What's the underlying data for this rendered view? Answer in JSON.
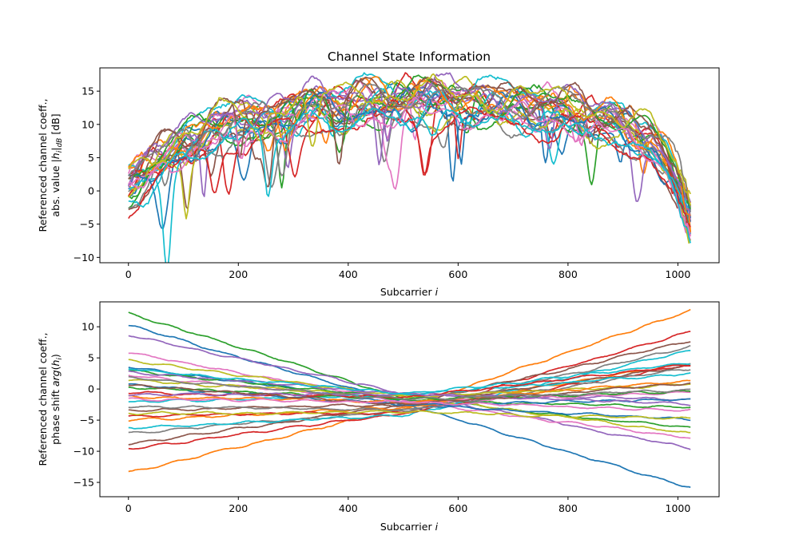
{
  "title": "Channel State Information",
  "chart_data": [
    {
      "type": "line",
      "title": "Channel State Information",
      "xlabel": "Subcarrier i",
      "ylabel_line1": "Referenced channel coeff.,",
      "ylabel_line2": "abs. value |h_i|_dB [dB]",
      "xlim": [
        -52,
        1075
      ],
      "ylim": [
        -10.8,
        18.5
      ],
      "xticks": [
        0,
        200,
        400,
        600,
        800,
        1000
      ],
      "yticks": [
        -10,
        -5,
        0,
        5,
        10,
        15
      ],
      "xtick_labels": [
        "0",
        "200",
        "400",
        "600",
        "800",
        "1000"
      ],
      "ytick_labels": [
        "−10",
        "−5",
        "0",
        "5",
        "10",
        "15"
      ],
      "grid": false,
      "legend": "none",
      "num_series": 30,
      "subcarriers": [
        0,
        1023
      ],
      "envelope": {
        "x": [
          0,
          50,
          100,
          150,
          200,
          300,
          400,
          500,
          600,
          700,
          800,
          880,
          950,
          1000,
          1023
        ],
        "y_mean": [
          0.5,
          3.5,
          6.5,
          9,
          10,
          11.5,
          12.5,
          13,
          13,
          12.5,
          11.5,
          10,
          7,
          2,
          -2
        ],
        "spread": 3.5
      }
    },
    {
      "type": "line",
      "xlabel": "Subcarrier i",
      "ylabel_line1": "Referenced channel coeff.,",
      "ylabel_line2": "phase shift arg(h_i)",
      "xlim": [
        -52,
        1075
      ],
      "ylim": [
        -17.3,
        14
      ],
      "xticks": [
        0,
        200,
        400,
        600,
        800,
        1000
      ],
      "yticks": [
        -15,
        -10,
        -5,
        0,
        5,
        10
      ],
      "xtick_labels": [
        "0",
        "200",
        "400",
        "600",
        "800",
        "1000"
      ],
      "ytick_labels": [
        "−15",
        "−10",
        "−5",
        "0",
        "5",
        "10"
      ],
      "grid": false,
      "legend": "none",
      "series": [
        {
          "start": 10.2,
          "end": -15.9
        },
        {
          "start": -13.4,
          "end": 12.6
        },
        {
          "start": 12.2,
          "end": -6.2
        },
        {
          "start": -9.6,
          "end": 9.3
        },
        {
          "start": 8.7,
          "end": -9.4
        },
        {
          "start": -8.8,
          "end": 7.7
        },
        {
          "start": 5.8,
          "end": -7.9
        },
        {
          "start": -7.1,
          "end": 6.8
        },
        {
          "start": 4.6,
          "end": -7.1
        },
        {
          "start": -6.3,
          "end": 6.2
        },
        {
          "start": 3.6,
          "end": -4.9
        },
        {
          "start": -5.0,
          "end": 4.2
        },
        {
          "start": 3.0,
          "end": -2.9
        },
        {
          "start": -4.4,
          "end": 4.0
        },
        {
          "start": 2.7,
          "end": -1.6
        },
        {
          "start": -3.4,
          "end": 3.8
        },
        {
          "start": 2.2,
          "end": -0.6
        },
        {
          "start": -2.8,
          "end": 3.3
        },
        {
          "start": 1.5,
          "end": 0.8
        },
        {
          "start": -2.1,
          "end": 2.5
        },
        {
          "start": 0.7,
          "end": -1.8
        },
        {
          "start": -1.2,
          "end": 1.3
        },
        {
          "start": 0.3,
          "end": -0.4
        },
        {
          "start": -0.6,
          "end": 3.9
        },
        {
          "start": -0.9,
          "end": -2.4
        },
        {
          "start": 0.6,
          "end": 1.0
        },
        {
          "start": -1.6,
          "end": -3.4
        },
        {
          "start": 1.9,
          "end": 0.0
        },
        {
          "start": -3.9,
          "end": -4.8
        },
        {
          "start": 3.3,
          "end": 4.2
        }
      ],
      "crossing_x": 510,
      "crossing_y": -2.5
    }
  ],
  "colors": [
    "#1f77b4",
    "#ff7f0e",
    "#2ca02c",
    "#d62728",
    "#9467bd",
    "#8c564b",
    "#e377c2",
    "#7f7f7f",
    "#bcbd22",
    "#17becf"
  ]
}
